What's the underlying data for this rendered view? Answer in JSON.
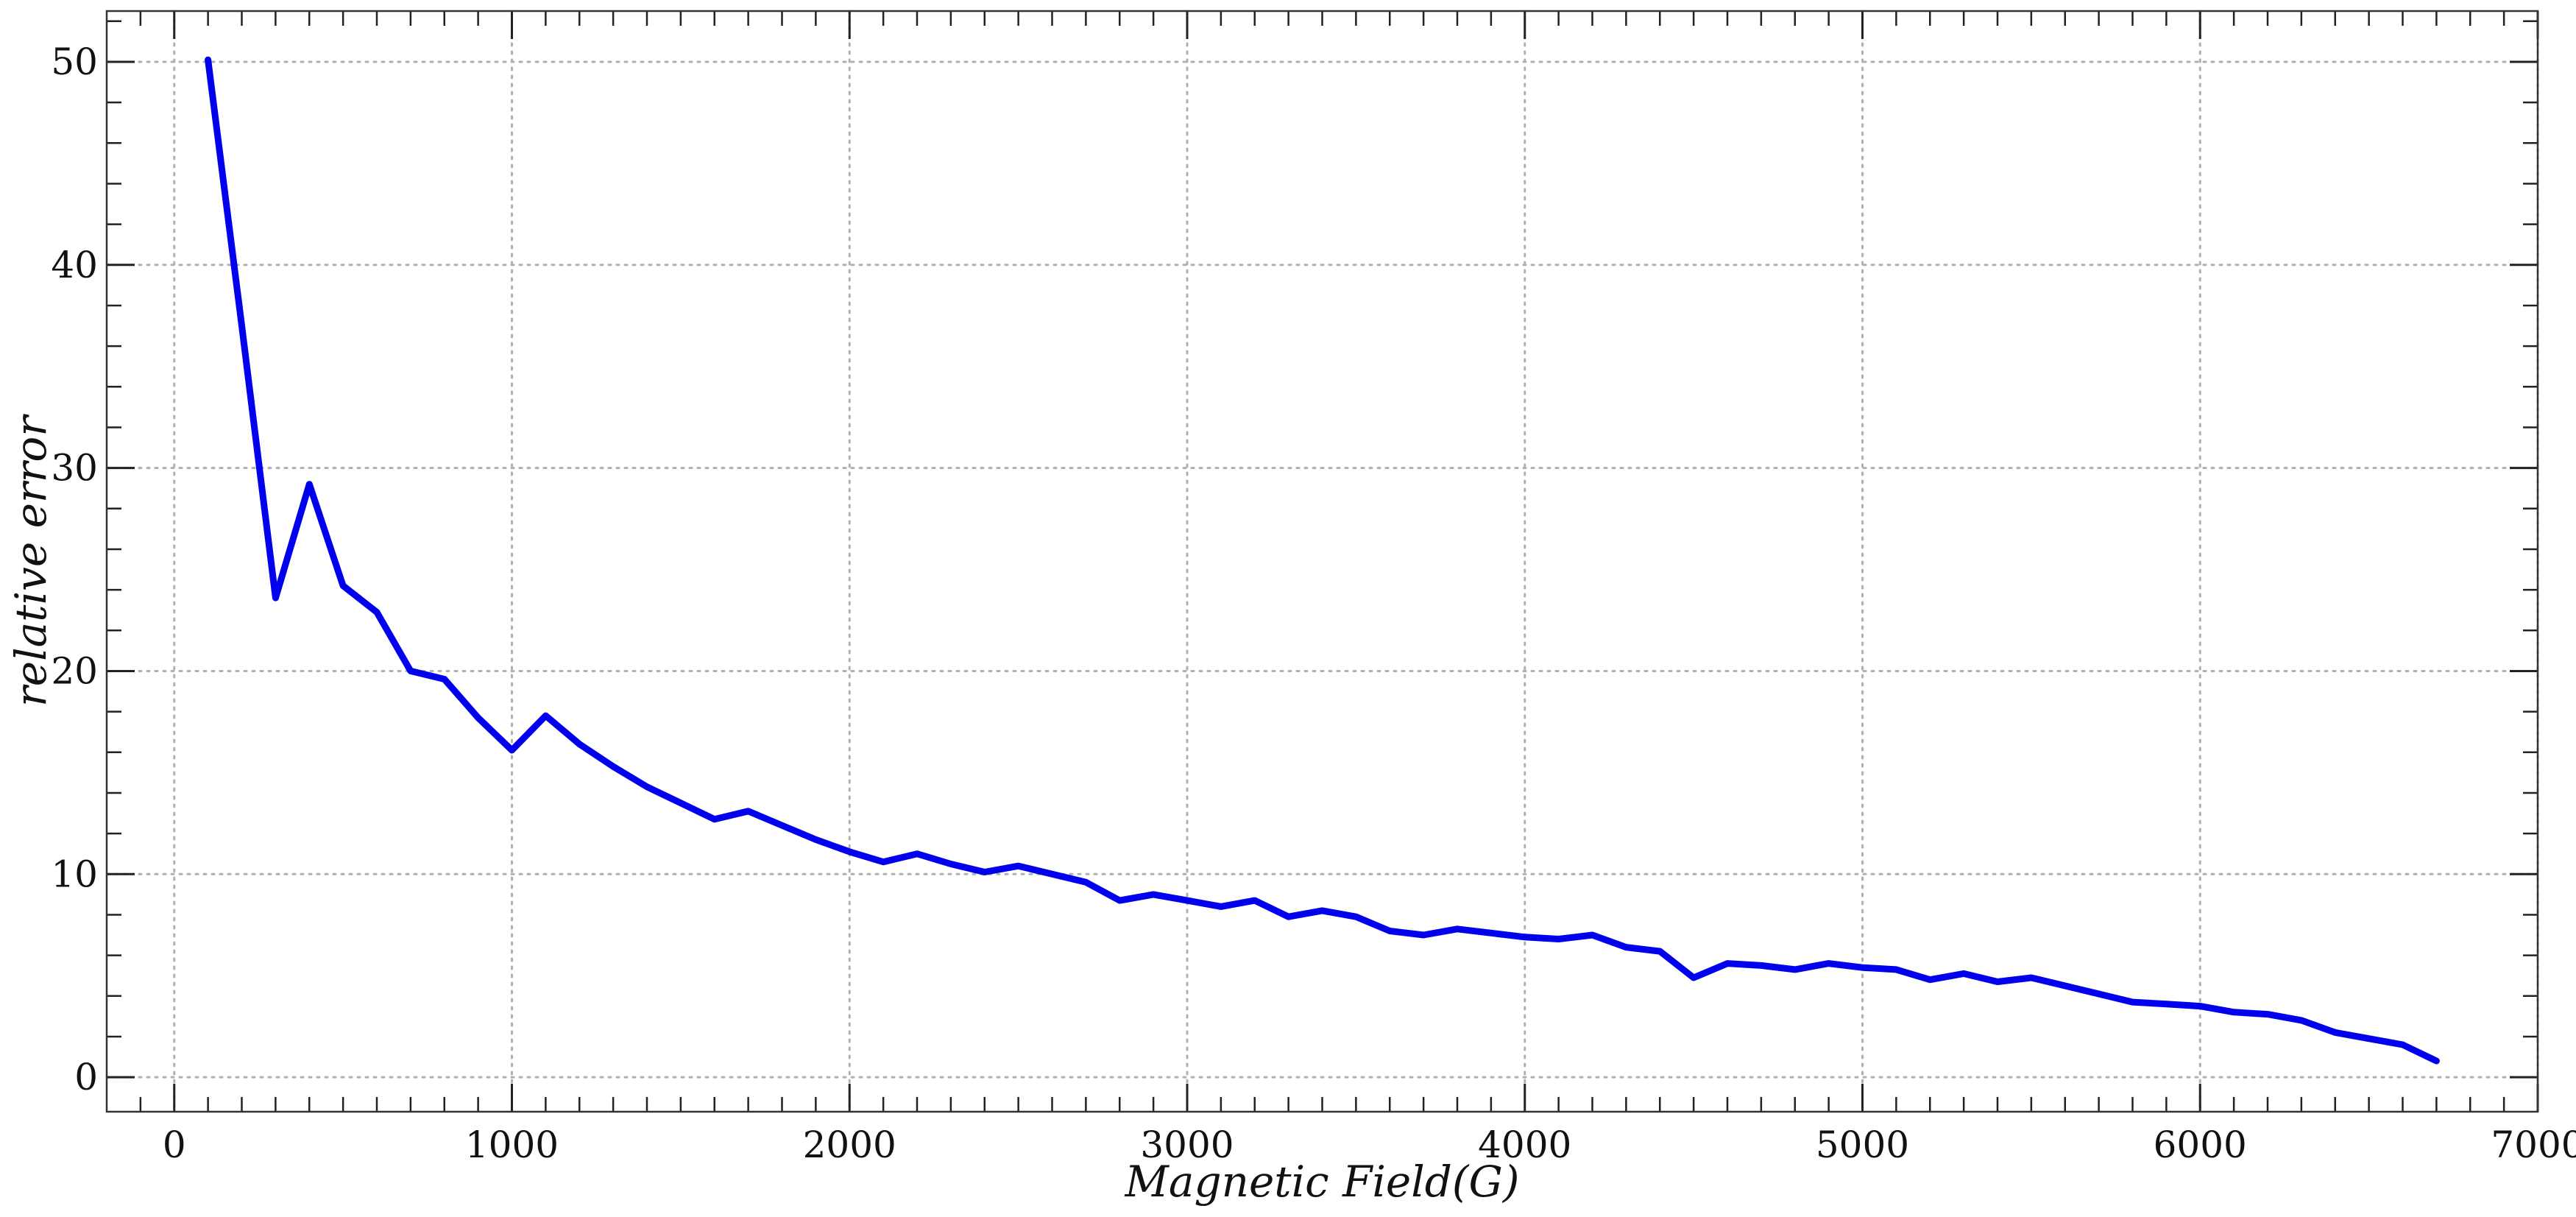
{
  "chart_data": {
    "type": "line",
    "xlabel": "Magnetic Field(G)",
    "ylabel": "relative error",
    "xlim": [
      -200,
      7000
    ],
    "ylim": [
      -1.7,
      52.5
    ],
    "x_ticks": [
      0,
      1000,
      2000,
      3000,
      4000,
      5000,
      6000,
      7000
    ],
    "x_tick_labels": [
      "0",
      "1000",
      "2000",
      "3000",
      "4000",
      "5000",
      "6000",
      "7000"
    ],
    "y_ticks": [
      0,
      10,
      20,
      30,
      40,
      50
    ],
    "y_tick_labels": [
      "0",
      "10",
      "20",
      "30",
      "40",
      "50"
    ],
    "grid": true,
    "grid_style": "dotted",
    "line_color": "#0000ee",
    "series": [
      {
        "x": [
          100,
          200,
          300,
          400,
          500,
          600,
          700,
          800,
          900,
          1000,
          1100,
          1200,
          1300,
          1400,
          1500,
          1600,
          1700,
          1800,
          1900,
          2000,
          2100,
          2200,
          2300,
          2400,
          2500,
          2600,
          2700,
          2800,
          2900,
          3000,
          3100,
          3200,
          3300,
          3400,
          3500,
          3600,
          3700,
          3800,
          3900,
          4000,
          4100,
          4200,
          4300,
          4400,
          4500,
          4600,
          4700,
          4800,
          4900,
          5000,
          5100,
          5200,
          5300,
          5400,
          5500,
          5600,
          5700,
          5800,
          5900,
          6000,
          6100,
          6200,
          6300,
          6400,
          6500,
          6600,
          6700
        ],
        "values": [
          50.1,
          37.0,
          23.6,
          29.2,
          24.2,
          22.9,
          20.0,
          19.6,
          17.7,
          16.1,
          17.8,
          16.4,
          15.3,
          14.3,
          13.5,
          12.7,
          13.1,
          12.4,
          11.7,
          11.1,
          10.6,
          11.0,
          10.5,
          10.1,
          10.4,
          10.0,
          9.6,
          8.7,
          9.0,
          8.7,
          8.4,
          8.7,
          7.9,
          8.2,
          7.9,
          7.2,
          7.0,
          7.3,
          7.1,
          6.9,
          6.8,
          7.0,
          6.4,
          6.2,
          4.9,
          5.6,
          5.5,
          5.3,
          5.6,
          5.4,
          5.3,
          4.8,
          5.1,
          4.7,
          4.9,
          4.5,
          4.1,
          3.7,
          3.6,
          3.5,
          3.2,
          3.1,
          2.8,
          2.2,
          1.9,
          1.6,
          0.8
        ]
      }
    ]
  }
}
